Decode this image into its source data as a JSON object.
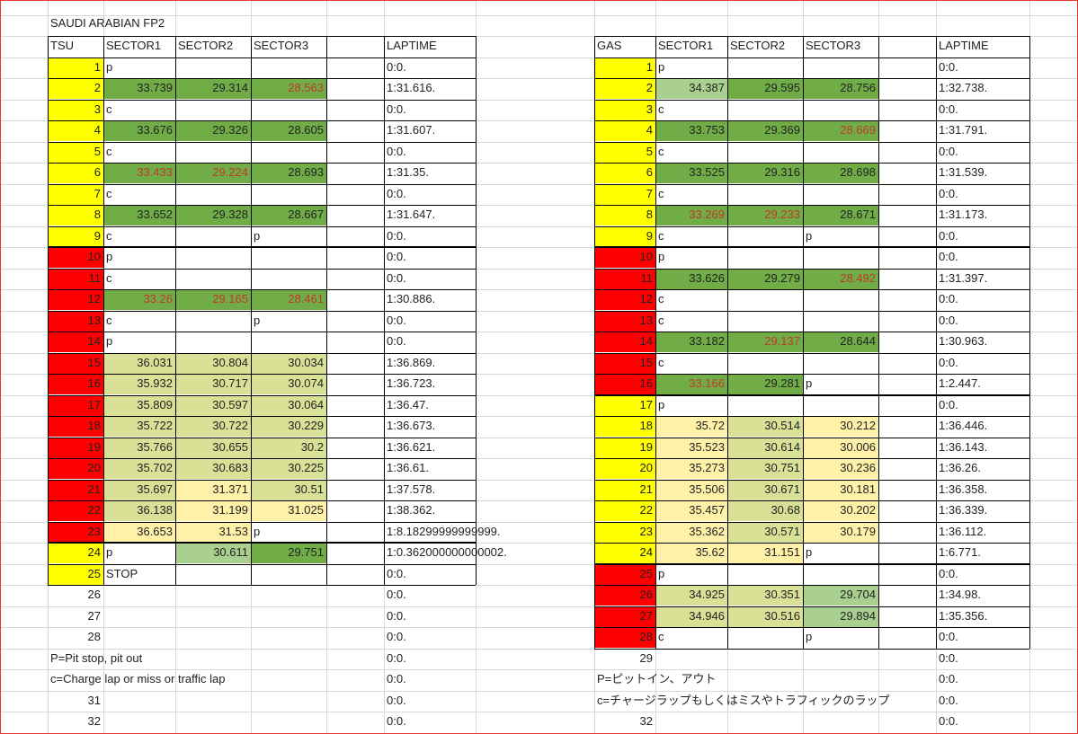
{
  "title": "SAUDI ARABIAN  FP2",
  "colors": {
    "yellow": "#ffff00",
    "red": "#ff0000",
    "green": "#70ad47",
    "lightgreen": "#a9d08e",
    "khaki": "#d9e197",
    "paleyellow": "#fff2a8",
    "fastest_text": "#c0392b"
  },
  "tsu": {
    "headers": [
      "TSU",
      "SECTOR1",
      "SECTOR2",
      "SECTOR3",
      "",
      "LAPTIME"
    ],
    "rows": [
      {
        "lap": "1",
        "s1": "p",
        "s2": "",
        "s3": "",
        "lt": "0:0.",
        "lapc": "yellow",
        "fill": [
          "",
          "",
          ""
        ],
        "red": [
          0,
          0,
          0
        ]
      },
      {
        "lap": "2",
        "s1": "33.739",
        "s2": "29.314",
        "s3": "28.563",
        "lt": "1:31.616.",
        "lapc": "yellow",
        "fill": [
          "green",
          "green",
          "green"
        ],
        "red": [
          0,
          0,
          1
        ]
      },
      {
        "lap": "3",
        "s1": "c",
        "s2": "",
        "s3": "",
        "lt": "0:0.",
        "lapc": "yellow",
        "fill": [
          "",
          "",
          ""
        ],
        "red": [
          0,
          0,
          0
        ]
      },
      {
        "lap": "4",
        "s1": "33.676",
        "s2": "29.326",
        "s3": "28.605",
        "lt": "1:31.607.",
        "lapc": "yellow",
        "fill": [
          "green",
          "green",
          "green"
        ],
        "red": [
          0,
          0,
          0
        ]
      },
      {
        "lap": "5",
        "s1": "c",
        "s2": "",
        "s3": "",
        "lt": "0:0.",
        "lapc": "yellow",
        "fill": [
          "",
          "",
          ""
        ],
        "red": [
          0,
          0,
          0
        ]
      },
      {
        "lap": "6",
        "s1": "33.433",
        "s2": "29.224",
        "s3": "28.693",
        "lt": "1:31.35.",
        "lapc": "yellow",
        "fill": [
          "green",
          "green",
          "green"
        ],
        "red": [
          1,
          1,
          0
        ]
      },
      {
        "lap": "7",
        "s1": "c",
        "s2": "",
        "s3": "",
        "lt": "0:0.",
        "lapc": "yellow",
        "fill": [
          "",
          "",
          ""
        ],
        "red": [
          0,
          0,
          0
        ]
      },
      {
        "lap": "8",
        "s1": "33.652",
        "s2": "29.328",
        "s3": "28.667",
        "lt": "1:31.647.",
        "lapc": "yellow",
        "fill": [
          "green",
          "green",
          "green"
        ],
        "red": [
          0,
          0,
          0
        ]
      },
      {
        "lap": "9",
        "s1": "c",
        "s2": "",
        "s3": "p",
        "lt": "0:0.",
        "lapc": "yellow",
        "fill": [
          "",
          "",
          ""
        ],
        "red": [
          0,
          0,
          0
        ]
      },
      {
        "lap": "10",
        "s1": "p",
        "s2": "",
        "s3": "",
        "lt": "0:0.",
        "lapc": "red",
        "fill": [
          "",
          "",
          ""
        ],
        "red": [
          0,
          0,
          0
        ]
      },
      {
        "lap": "11",
        "s1": "c",
        "s2": "",
        "s3": "",
        "lt": "0:0.",
        "lapc": "red",
        "fill": [
          "",
          "",
          ""
        ],
        "red": [
          0,
          0,
          0
        ]
      },
      {
        "lap": "12",
        "s1": "33.26",
        "s2": "29.165",
        "s3": "28.461",
        "lt": "1:30.886.",
        "lapc": "red",
        "fill": [
          "green",
          "green",
          "green"
        ],
        "red": [
          1,
          1,
          1
        ]
      },
      {
        "lap": "13",
        "s1": "c",
        "s2": "",
        "s3": "p",
        "lt": "0:0.",
        "lapc": "red",
        "fill": [
          "",
          "",
          ""
        ],
        "red": [
          0,
          0,
          0
        ]
      },
      {
        "lap": "14",
        "s1": "p",
        "s2": "",
        "s3": "",
        "lt": "0:0.",
        "lapc": "red",
        "fill": [
          "",
          "",
          ""
        ],
        "red": [
          0,
          0,
          0
        ]
      },
      {
        "lap": "15",
        "s1": "36.031",
        "s2": "30.804",
        "s3": "30.034",
        "lt": "1:36.869.",
        "lapc": "red",
        "fill": [
          "khaki",
          "khaki",
          "khaki"
        ],
        "red": [
          0,
          0,
          0
        ]
      },
      {
        "lap": "16",
        "s1": "35.932",
        "s2": "30.717",
        "s3": "30.074",
        "lt": "1:36.723.",
        "lapc": "red",
        "fill": [
          "khaki",
          "khaki",
          "khaki"
        ],
        "red": [
          0,
          0,
          0
        ]
      },
      {
        "lap": "17",
        "s1": "35.809",
        "s2": "30.597",
        "s3": "30.064",
        "lt": "1:36.47.",
        "lapc": "red",
        "fill": [
          "khaki",
          "khaki",
          "khaki"
        ],
        "red": [
          0,
          0,
          0
        ]
      },
      {
        "lap": "18",
        "s1": "35.722",
        "s2": "30.722",
        "s3": "30.229",
        "lt": "1:36.673.",
        "lapc": "red",
        "fill": [
          "khaki",
          "khaki",
          "khaki"
        ],
        "red": [
          0,
          0,
          0
        ]
      },
      {
        "lap": "19",
        "s1": "35.766",
        "s2": "30.655",
        "s3": "30.2",
        "lt": "1:36.621.",
        "lapc": "red",
        "fill": [
          "khaki",
          "khaki",
          "khaki"
        ],
        "red": [
          0,
          0,
          0
        ]
      },
      {
        "lap": "20",
        "s1": "35.702",
        "s2": "30.683",
        "s3": "30.225",
        "lt": "1:36.61.",
        "lapc": "red",
        "fill": [
          "khaki",
          "khaki",
          "khaki"
        ],
        "red": [
          0,
          0,
          0
        ]
      },
      {
        "lap": "21",
        "s1": "35.697",
        "s2": "31.371",
        "s3": "30.51",
        "lt": "1:37.578.",
        "lapc": "red",
        "fill": [
          "khaki",
          "paleyellow",
          "khaki"
        ],
        "red": [
          0,
          0,
          0
        ]
      },
      {
        "lap": "22",
        "s1": "36.138",
        "s2": "31.199",
        "s3": "31.025",
        "lt": "1:38.362.",
        "lapc": "red",
        "fill": [
          "khaki",
          "paleyellow",
          "paleyellow"
        ],
        "red": [
          0,
          0,
          0
        ]
      },
      {
        "lap": "23",
        "s1": "36.653",
        "s2": "31.53",
        "s3": "p",
        "lt": "1:8.18299999999999.",
        "lapc": "red",
        "fill": [
          "paleyellow",
          "paleyellow",
          ""
        ],
        "red": [
          0,
          0,
          0
        ]
      },
      {
        "lap": "24",
        "s1": "p",
        "s2": "30.611",
        "s3": "29.751",
        "lt": "1:0.362000000000002.",
        "lapc": "yellow",
        "fill": [
          "",
          "lightgreen",
          "green"
        ],
        "red": [
          0,
          0,
          0
        ]
      },
      {
        "lap": "25",
        "s1": "STOP",
        "s2": "",
        "s3": "",
        "lt": "0:0.",
        "lapc": "yellow",
        "fill": [
          "",
          "",
          ""
        ],
        "red": [
          0,
          0,
          0
        ]
      },
      {
        "lap": "26",
        "s1": "",
        "s2": "",
        "s3": "",
        "lt": "0:0.",
        "lapc": "",
        "fill": [
          "",
          "",
          ""
        ],
        "red": [
          0,
          0,
          0
        ]
      },
      {
        "lap": "27",
        "s1": "",
        "s2": "",
        "s3": "",
        "lt": "0:0.",
        "lapc": "",
        "fill": [
          "",
          "",
          ""
        ],
        "red": [
          0,
          0,
          0
        ]
      },
      {
        "lap": "28",
        "s1": "",
        "s2": "",
        "s3": "",
        "lt": "0:0.",
        "lapc": "",
        "fill": [
          "",
          "",
          ""
        ],
        "red": [
          0,
          0,
          0
        ]
      },
      {
        "lap": "",
        "s1": "",
        "s2": "",
        "s3": "",
        "lt": "0:0.",
        "lapc": "",
        "fill": [
          "",
          "",
          ""
        ],
        "red": [
          0,
          0,
          0
        ]
      },
      {
        "lap": "",
        "s1": "",
        "s2": "",
        "s3": "",
        "lt": "0:0.",
        "lapc": "",
        "fill": [
          "",
          "",
          ""
        ],
        "red": [
          0,
          0,
          0
        ]
      },
      {
        "lap": "31",
        "s1": "",
        "s2": "",
        "s3": "",
        "lt": "0:0.",
        "lapc": "",
        "fill": [
          "",
          "",
          ""
        ],
        "red": [
          0,
          0,
          0
        ]
      },
      {
        "lap": "32",
        "s1": "",
        "s2": "",
        "s3": "",
        "lt": "0:0.",
        "lapc": "",
        "fill": [
          "",
          "",
          ""
        ],
        "red": [
          0,
          0,
          0
        ]
      }
    ],
    "notes": [
      "P=Pit stop, pit out",
      "c=Charge lap or miss or traffic lap"
    ]
  },
  "gas": {
    "headers": [
      "GAS",
      "SECTOR1",
      "SECTOR2",
      "SECTOR3",
      "",
      "LAPTIME"
    ],
    "rows": [
      {
        "lap": "1",
        "s1": "p",
        "s2": "",
        "s3": "",
        "lt": "0:0.",
        "lapc": "yellow",
        "fill": [
          "",
          "",
          ""
        ],
        "red": [
          0,
          0,
          0
        ]
      },
      {
        "lap": "2",
        "s1": "34.387",
        "s2": "29.595",
        "s3": "28.756",
        "lt": "1:32.738.",
        "lapc": "yellow",
        "fill": [
          "lightgreen",
          "green",
          "green"
        ],
        "red": [
          0,
          0,
          0
        ]
      },
      {
        "lap": "3",
        "s1": "c",
        "s2": "",
        "s3": "",
        "lt": "0:0.",
        "lapc": "yellow",
        "fill": [
          "",
          "",
          ""
        ],
        "red": [
          0,
          0,
          0
        ]
      },
      {
        "lap": "4",
        "s1": "33.753",
        "s2": "29.369",
        "s3": "28.669",
        "lt": "1:31.791.",
        "lapc": "yellow",
        "fill": [
          "green",
          "green",
          "green"
        ],
        "red": [
          0,
          0,
          1
        ]
      },
      {
        "lap": "5",
        "s1": "c",
        "s2": "",
        "s3": "",
        "lt": "0:0.",
        "lapc": "yellow",
        "fill": [
          "",
          "",
          ""
        ],
        "red": [
          0,
          0,
          0
        ]
      },
      {
        "lap": "6",
        "s1": "33.525",
        "s2": "29.316",
        "s3": "28.698",
        "lt": "1:31.539.",
        "lapc": "yellow",
        "fill": [
          "green",
          "green",
          "green"
        ],
        "red": [
          0,
          0,
          0
        ]
      },
      {
        "lap": "7",
        "s1": "c",
        "s2": "",
        "s3": "",
        "lt": "0:0.",
        "lapc": "yellow",
        "fill": [
          "",
          "",
          ""
        ],
        "red": [
          0,
          0,
          0
        ]
      },
      {
        "lap": "8",
        "s1": "33.269",
        "s2": "29.233",
        "s3": "28.671",
        "lt": "1:31.173.",
        "lapc": "yellow",
        "fill": [
          "green",
          "green",
          "green"
        ],
        "red": [
          1,
          1,
          0
        ]
      },
      {
        "lap": "9",
        "s1": "c",
        "s2": "",
        "s3": "p",
        "lt": "0:0.",
        "lapc": "yellow",
        "fill": [
          "",
          "",
          ""
        ],
        "red": [
          0,
          0,
          0
        ]
      },
      {
        "lap": "10",
        "s1": "p",
        "s2": "",
        "s3": "",
        "lt": "0:0.",
        "lapc": "red",
        "fill": [
          "",
          "",
          ""
        ],
        "red": [
          0,
          0,
          0
        ]
      },
      {
        "lap": "11",
        "s1": "33.626",
        "s2": "29.279",
        "s3": "28.492",
        "lt": "1:31.397.",
        "lapc": "red",
        "fill": [
          "green",
          "green",
          "green"
        ],
        "red": [
          0,
          0,
          1
        ]
      },
      {
        "lap": "12",
        "s1": "c",
        "s2": "",
        "s3": "",
        "lt": "0:0.",
        "lapc": "red",
        "fill": [
          "",
          "",
          ""
        ],
        "red": [
          0,
          0,
          0
        ]
      },
      {
        "lap": "13",
        "s1": "c",
        "s2": "",
        "s3": "",
        "lt": "0:0.",
        "lapc": "red",
        "fill": [
          "",
          "",
          ""
        ],
        "red": [
          0,
          0,
          0
        ]
      },
      {
        "lap": "14",
        "s1": "33.182",
        "s2": "29.137",
        "s3": "28.644",
        "lt": "1:30.963.",
        "lapc": "red",
        "fill": [
          "green",
          "green",
          "green"
        ],
        "red": [
          0,
          1,
          0
        ]
      },
      {
        "lap": "15",
        "s1": "c",
        "s2": "",
        "s3": "",
        "lt": "0:0.",
        "lapc": "red",
        "fill": [
          "",
          "",
          ""
        ],
        "red": [
          0,
          0,
          0
        ]
      },
      {
        "lap": "16",
        "s1": "33.166",
        "s2": "29.281",
        "s3": "p",
        "lt": "1:2.447.",
        "lapc": "red",
        "fill": [
          "green",
          "green",
          ""
        ],
        "red": [
          1,
          0,
          0
        ]
      },
      {
        "lap": "17",
        "s1": "p",
        "s2": "",
        "s3": "",
        "lt": "0:0.",
        "lapc": "yellow",
        "fill": [
          "",
          "",
          ""
        ],
        "red": [
          0,
          0,
          0
        ]
      },
      {
        "lap": "18",
        "s1": "35.72",
        "s2": "30.514",
        "s3": "30.212",
        "lt": "1:36.446.",
        "lapc": "yellow",
        "fill": [
          "paleyellow",
          "khaki",
          "paleyellow"
        ],
        "red": [
          0,
          0,
          0
        ]
      },
      {
        "lap": "19",
        "s1": "35.523",
        "s2": "30.614",
        "s3": "30.006",
        "lt": "1:36.143.",
        "lapc": "yellow",
        "fill": [
          "paleyellow",
          "khaki",
          "paleyellow"
        ],
        "red": [
          0,
          0,
          0
        ]
      },
      {
        "lap": "20",
        "s1": "35.273",
        "s2": "30.751",
        "s3": "30.236",
        "lt": "1:36.26.",
        "lapc": "yellow",
        "fill": [
          "paleyellow",
          "khaki",
          "paleyellow"
        ],
        "red": [
          0,
          0,
          0
        ]
      },
      {
        "lap": "21",
        "s1": "35.506",
        "s2": "30.671",
        "s3": "30.181",
        "lt": "1:36.358.",
        "lapc": "yellow",
        "fill": [
          "paleyellow",
          "khaki",
          "paleyellow"
        ],
        "red": [
          0,
          0,
          0
        ]
      },
      {
        "lap": "22",
        "s1": "35.457",
        "s2": "30.68",
        "s3": "30.202",
        "lt": "1:36.339.",
        "lapc": "yellow",
        "fill": [
          "paleyellow",
          "khaki",
          "paleyellow"
        ],
        "red": [
          0,
          0,
          0
        ]
      },
      {
        "lap": "23",
        "s1": "35.362",
        "s2": "30.571",
        "s3": "30.179",
        "lt": "1:36.112.",
        "lapc": "yellow",
        "fill": [
          "paleyellow",
          "khaki",
          "paleyellow"
        ],
        "red": [
          0,
          0,
          0
        ]
      },
      {
        "lap": "24",
        "s1": "35.62",
        "s2": "31.151",
        "s3": "p",
        "lt": "1:6.771.",
        "lapc": "yellow",
        "fill": [
          "paleyellow",
          "paleyellow",
          ""
        ],
        "red": [
          0,
          0,
          0
        ]
      },
      {
        "lap": "25",
        "s1": "p",
        "s2": "",
        "s3": "",
        "lt": "0:0.",
        "lapc": "red",
        "fill": [
          "",
          "",
          ""
        ],
        "red": [
          0,
          0,
          0
        ]
      },
      {
        "lap": "26",
        "s1": "34.925",
        "s2": "30.351",
        "s3": "29.704",
        "lt": "1:34.98.",
        "lapc": "red",
        "fill": [
          "khaki",
          "khaki",
          "lightgreen"
        ],
        "red": [
          0,
          0,
          0
        ]
      },
      {
        "lap": "27",
        "s1": "34.946",
        "s2": "30.516",
        "s3": "29.894",
        "lt": "1:35.356.",
        "lapc": "red",
        "fill": [
          "khaki",
          "khaki",
          "lightgreen"
        ],
        "red": [
          0,
          0,
          0
        ]
      },
      {
        "lap": "28",
        "s1": "c",
        "s2": "",
        "s3": "p",
        "lt": "0:0.",
        "lapc": "red",
        "fill": [
          "",
          "",
          ""
        ],
        "red": [
          0,
          0,
          0
        ]
      },
      {
        "lap": "29",
        "s1": "",
        "s2": "",
        "s3": "",
        "lt": "0:0.",
        "lapc": "",
        "fill": [
          "",
          "",
          ""
        ],
        "red": [
          0,
          0,
          0
        ]
      },
      {
        "lap": "",
        "s1": "",
        "s2": "",
        "s3": "",
        "lt": "0:0.",
        "lapc": "",
        "fill": [
          "",
          "",
          ""
        ],
        "red": [
          0,
          0,
          0
        ]
      },
      {
        "lap": "",
        "s1": "",
        "s2": "",
        "s3": "",
        "lt": "0:0.",
        "lapc": "",
        "fill": [
          "",
          "",
          ""
        ],
        "red": [
          0,
          0,
          0
        ]
      },
      {
        "lap": "32",
        "s1": "",
        "s2": "",
        "s3": "",
        "lt": "0:0.",
        "lapc": "",
        "fill": [
          "",
          "",
          ""
        ],
        "red": [
          0,
          0,
          0
        ]
      }
    ],
    "notes": [
      "P=ピットイン、アウト",
      "c=チャージラップもしくはミスやトラフィックのラップ"
    ]
  }
}
